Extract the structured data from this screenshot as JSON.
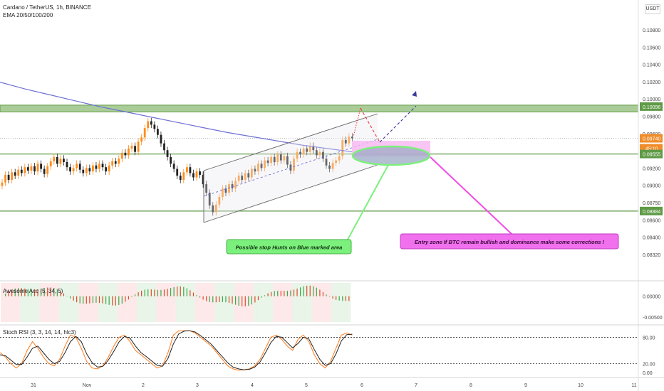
{
  "header": {
    "symbol": "Cardano / TetherUS, 1h, BINANCE",
    "ema": "EMA 20/50/100/200",
    "scale": "USDT"
  },
  "colors": {
    "up": "#ff8c1a",
    "down": "#222222",
    "ema": "#6f6fd6",
    "zone_green": "#5f9a46",
    "zone_pink": "#f24ae6",
    "note_green": "#7cf07c",
    "note_pink": "#f070ee"
  },
  "annotations": {
    "stop_hunts": "Possible stop Hunts on Blue marked area",
    "entry_zone": "Entry zone If BTC remain bullish and dominance make some corrections !"
  },
  "chart_data": [
    {
      "type": "candlestick",
      "name": "Cardano / TetherUS, 1h, BINANCE",
      "ylim": [
        0.0808,
        0.1135
      ],
      "y_ticks": [
        "0.10800",
        "0.10600",
        "0.10400",
        "0.10200",
        "0.10000",
        "0.09800",
        "0.09600",
        "0.09400",
        "0.09200",
        "0.09000",
        "0.08750",
        "0.08600",
        "0.08400",
        "0.08320"
      ],
      "x_ticks": [
        "31",
        "Nov",
        "2",
        "3",
        "4",
        "5",
        "6",
        "7",
        "8",
        "9",
        "10",
        "11"
      ],
      "price_labels": {
        "resistance": "0.10096",
        "last": "0.09740",
        "countdown": "45:10",
        "mid_support": "0.09555",
        "low_support": "0.08884"
      },
      "levels": {
        "resistance_zone": [
          0.1005,
          0.1013
        ],
        "mid_support": 0.09555,
        "low_support": 0.08884
      },
      "candles_close": [
        0.0922,
        0.0931,
        0.0925,
        0.0934,
        0.093,
        0.0937,
        0.0933,
        0.094,
        0.0936,
        0.0941,
        0.0935,
        0.0944,
        0.0938,
        0.0932,
        0.0941,
        0.0947,
        0.0952,
        0.0944,
        0.095,
        0.0946,
        0.094,
        0.0935,
        0.0939,
        0.0944,
        0.0937,
        0.0933,
        0.0939,
        0.0935,
        0.0942,
        0.0938,
        0.0944,
        0.094,
        0.0935,
        0.0942,
        0.0947,
        0.0944,
        0.095,
        0.0957,
        0.0954,
        0.0962,
        0.0965,
        0.0958,
        0.097,
        0.0975,
        0.0986,
        0.0994,
        0.099,
        0.0985,
        0.0978,
        0.0968,
        0.096,
        0.0952,
        0.0944,
        0.0938,
        0.093,
        0.0925,
        0.0934,
        0.094,
        0.0933,
        0.0928,
        0.0935,
        0.0931,
        0.092,
        0.091,
        0.0895,
        0.0887,
        0.0896,
        0.0905,
        0.0915,
        0.091,
        0.092,
        0.0915,
        0.0924,
        0.093,
        0.0925,
        0.0933,
        0.0928,
        0.0938,
        0.0935,
        0.0944,
        0.0939,
        0.0948,
        0.0945,
        0.0952,
        0.0946,
        0.0955,
        0.0948,
        0.0953,
        0.0943,
        0.0936,
        0.095,
        0.0958,
        0.0955,
        0.0962,
        0.0958,
        0.0965,
        0.096,
        0.0954,
        0.0958,
        0.095,
        0.0942,
        0.0938,
        0.0945,
        0.0948,
        0.0953,
        0.0972,
        0.0968,
        0.0976,
        0.0974
      ],
      "ema200": [
        0.104,
        0.1032,
        0.1025,
        0.1018,
        0.1011,
        0.1005,
        0.0999,
        0.0993,
        0.0987,
        0.0981,
        0.0976,
        0.0971,
        0.0966,
        0.0962,
        0.0958
      ],
      "projection": {
        "down_to": 0.096,
        "up_to": 0.1012
      }
    },
    {
      "type": "histogram",
      "name": "Awesome Acc (5, 34, 5)",
      "ylim": [
        -0.0065,
        0.0035
      ],
      "y_ticks": [
        "0.00000",
        "-0.00500"
      ]
    },
    {
      "type": "line",
      "name": "Stoch RSI (3, 3, 14, 14, hlc3)",
      "ylim": [
        -10,
        105
      ],
      "y_ticks": [
        "80.00",
        "20.00",
        "0.00"
      ],
      "bands": [
        80,
        20
      ],
      "series": [
        {
          "name": "K",
          "values": [
            45,
            35,
            20,
            10,
            20,
            50,
            70,
            55,
            35,
            20,
            15,
            30,
            60,
            85,
            80,
            55,
            25,
            10,
            8,
            15,
            35,
            60,
            80,
            85,
            70,
            50,
            40,
            30,
            20,
            10,
            15,
            45,
            85,
            95,
            95,
            95,
            90,
            80,
            70,
            60,
            45,
            30,
            15,
            8,
            5,
            6,
            8,
            15,
            30,
            55,
            80,
            85,
            75,
            60,
            50,
            75,
            85,
            70,
            40,
            20,
            10,
            25,
            55,
            85,
            90,
            85
          ]
        },
        {
          "name": "D",
          "values": [
            40,
            38,
            28,
            18,
            18,
            35,
            55,
            60,
            45,
            30,
            20,
            25,
            45,
            70,
            82,
            70,
            42,
            22,
            12,
            14,
            28,
            48,
            70,
            82,
            78,
            60,
            45,
            36,
            26,
            16,
            14,
            32,
            65,
            88,
            94,
            95,
            92,
            84,
            74,
            64,
            50,
            36,
            22,
            12,
            8,
            6,
            7,
            12,
            24,
            45,
            68,
            82,
            80,
            68,
            56,
            66,
            80,
            76,
            52,
            30,
            16,
            20,
            42,
            72,
            86,
            87
          ]
        }
      ]
    }
  ]
}
